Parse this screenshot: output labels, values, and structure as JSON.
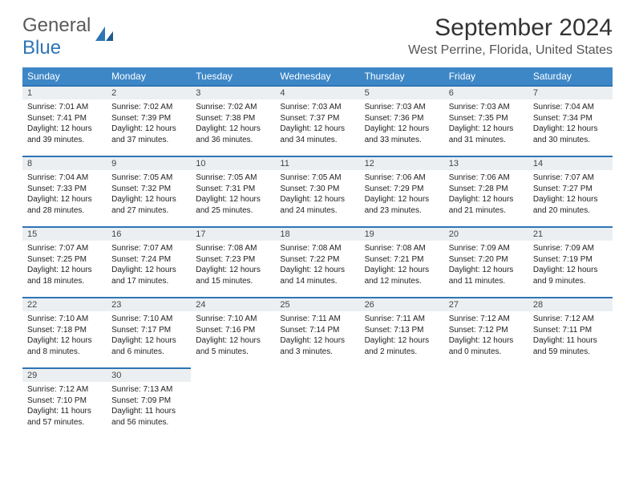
{
  "logo": {
    "word1": "General",
    "word2": "Blue"
  },
  "title": "September 2024",
  "location": "West Perrine, Florida, United States",
  "colors": {
    "header_bg": "#3d87c7",
    "header_text": "#ffffff",
    "day_strip_bg": "#eceff1",
    "day_strip_border": "#2e75b6",
    "logo_gray": "#5a5a5a",
    "logo_blue": "#2e75b6"
  },
  "weekdays": [
    "Sunday",
    "Monday",
    "Tuesday",
    "Wednesday",
    "Thursday",
    "Friday",
    "Saturday"
  ],
  "layout": {
    "first_weekday_index": 0,
    "days_in_month": 30,
    "rows": 5,
    "cols": 7
  },
  "days": [
    {
      "n": 1,
      "sunrise": "7:01 AM",
      "sunset": "7:41 PM",
      "daylight": "12 hours and 39 minutes."
    },
    {
      "n": 2,
      "sunrise": "7:02 AM",
      "sunset": "7:39 PM",
      "daylight": "12 hours and 37 minutes."
    },
    {
      "n": 3,
      "sunrise": "7:02 AM",
      "sunset": "7:38 PM",
      "daylight": "12 hours and 36 minutes."
    },
    {
      "n": 4,
      "sunrise": "7:03 AM",
      "sunset": "7:37 PM",
      "daylight": "12 hours and 34 minutes."
    },
    {
      "n": 5,
      "sunrise": "7:03 AM",
      "sunset": "7:36 PM",
      "daylight": "12 hours and 33 minutes."
    },
    {
      "n": 6,
      "sunrise": "7:03 AM",
      "sunset": "7:35 PM",
      "daylight": "12 hours and 31 minutes."
    },
    {
      "n": 7,
      "sunrise": "7:04 AM",
      "sunset": "7:34 PM",
      "daylight": "12 hours and 30 minutes."
    },
    {
      "n": 8,
      "sunrise": "7:04 AM",
      "sunset": "7:33 PM",
      "daylight": "12 hours and 28 minutes."
    },
    {
      "n": 9,
      "sunrise": "7:05 AM",
      "sunset": "7:32 PM",
      "daylight": "12 hours and 27 minutes."
    },
    {
      "n": 10,
      "sunrise": "7:05 AM",
      "sunset": "7:31 PM",
      "daylight": "12 hours and 25 minutes."
    },
    {
      "n": 11,
      "sunrise": "7:05 AM",
      "sunset": "7:30 PM",
      "daylight": "12 hours and 24 minutes."
    },
    {
      "n": 12,
      "sunrise": "7:06 AM",
      "sunset": "7:29 PM",
      "daylight": "12 hours and 23 minutes."
    },
    {
      "n": 13,
      "sunrise": "7:06 AM",
      "sunset": "7:28 PM",
      "daylight": "12 hours and 21 minutes."
    },
    {
      "n": 14,
      "sunrise": "7:07 AM",
      "sunset": "7:27 PM",
      "daylight": "12 hours and 20 minutes."
    },
    {
      "n": 15,
      "sunrise": "7:07 AM",
      "sunset": "7:25 PM",
      "daylight": "12 hours and 18 minutes."
    },
    {
      "n": 16,
      "sunrise": "7:07 AM",
      "sunset": "7:24 PM",
      "daylight": "12 hours and 17 minutes."
    },
    {
      "n": 17,
      "sunrise": "7:08 AM",
      "sunset": "7:23 PM",
      "daylight": "12 hours and 15 minutes."
    },
    {
      "n": 18,
      "sunrise": "7:08 AM",
      "sunset": "7:22 PM",
      "daylight": "12 hours and 14 minutes."
    },
    {
      "n": 19,
      "sunrise": "7:08 AM",
      "sunset": "7:21 PM",
      "daylight": "12 hours and 12 minutes."
    },
    {
      "n": 20,
      "sunrise": "7:09 AM",
      "sunset": "7:20 PM",
      "daylight": "12 hours and 11 minutes."
    },
    {
      "n": 21,
      "sunrise": "7:09 AM",
      "sunset": "7:19 PM",
      "daylight": "12 hours and 9 minutes."
    },
    {
      "n": 22,
      "sunrise": "7:10 AM",
      "sunset": "7:18 PM",
      "daylight": "12 hours and 8 minutes."
    },
    {
      "n": 23,
      "sunrise": "7:10 AM",
      "sunset": "7:17 PM",
      "daylight": "12 hours and 6 minutes."
    },
    {
      "n": 24,
      "sunrise": "7:10 AM",
      "sunset": "7:16 PM",
      "daylight": "12 hours and 5 minutes."
    },
    {
      "n": 25,
      "sunrise": "7:11 AM",
      "sunset": "7:14 PM",
      "daylight": "12 hours and 3 minutes."
    },
    {
      "n": 26,
      "sunrise": "7:11 AM",
      "sunset": "7:13 PM",
      "daylight": "12 hours and 2 minutes."
    },
    {
      "n": 27,
      "sunrise": "7:12 AM",
      "sunset": "7:12 PM",
      "daylight": "12 hours and 0 minutes."
    },
    {
      "n": 28,
      "sunrise": "7:12 AM",
      "sunset": "7:11 PM",
      "daylight": "11 hours and 59 minutes."
    },
    {
      "n": 29,
      "sunrise": "7:12 AM",
      "sunset": "7:10 PM",
      "daylight": "11 hours and 57 minutes."
    },
    {
      "n": 30,
      "sunrise": "7:13 AM",
      "sunset": "7:09 PM",
      "daylight": "11 hours and 56 minutes."
    }
  ],
  "labels": {
    "sunrise": "Sunrise:",
    "sunset": "Sunset:",
    "daylight": "Daylight:"
  }
}
